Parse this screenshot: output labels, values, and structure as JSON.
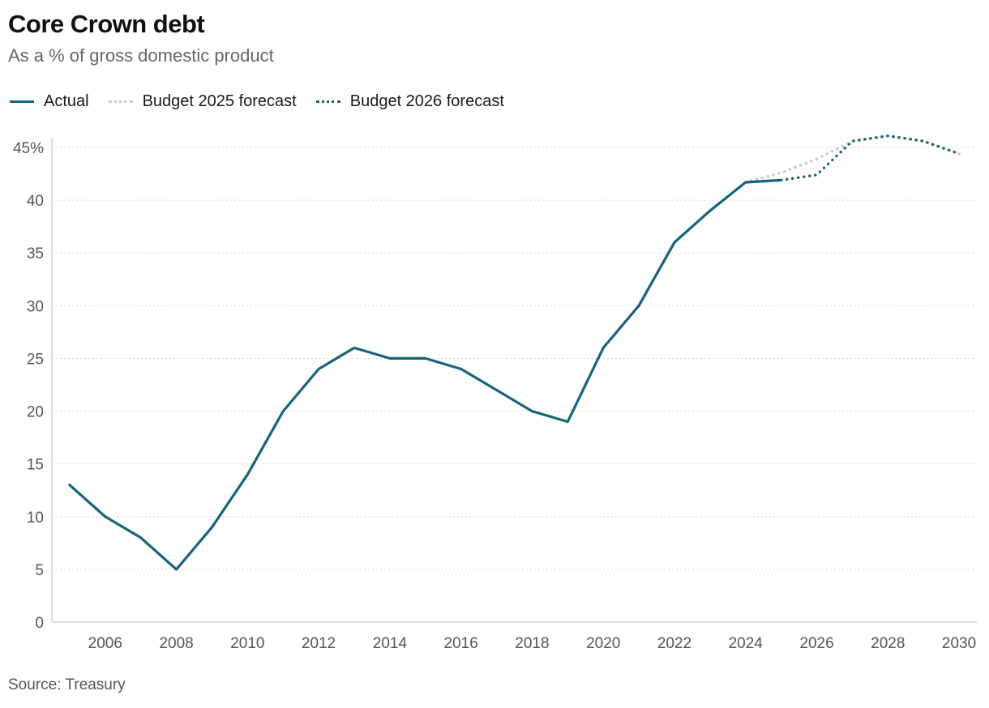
{
  "header": {
    "title": "Core Crown debt",
    "subtitle": "As a % of gross domestic product"
  },
  "legend": [
    {
      "label": "Actual",
      "style": "solid",
      "color": "#17647a"
    },
    {
      "label": "Budget 2025 forecast",
      "style": "dotted",
      "color": "#c8c8c8"
    },
    {
      "label": "Budget 2026 forecast",
      "style": "dotted",
      "color": "#17647a"
    }
  ],
  "source": "Source: Treasury",
  "chart_data": {
    "type": "line",
    "title": "Core Crown debt",
    "subtitle": "As a % of gross domestic product",
    "xlim": [
      2004.5,
      2030.5
    ],
    "ylim": [
      0,
      45
    ],
    "x_ticks": [
      2006,
      2008,
      2010,
      2012,
      2014,
      2016,
      2018,
      2020,
      2022,
      2024,
      2026,
      2028,
      2030
    ],
    "y_ticks": [
      0,
      5,
      10,
      15,
      20,
      25,
      30,
      35,
      40,
      45
    ],
    "y_tick_labels": [
      "0",
      "5",
      "10",
      "15",
      "20",
      "25",
      "30",
      "35",
      "40",
      "45%"
    ],
    "grid": "horizontal dotted",
    "legend_position": "top-left",
    "series": [
      {
        "name": "Budget 2025 forecast",
        "color": "#c8c8c8",
        "style": "dotted",
        "x": [
          2024,
          2025,
          2026,
          2027,
          2028,
          2029,
          2030
        ],
        "y": [
          41.7,
          42.6,
          43.9,
          45.6,
          46.1,
          45.6,
          44.4
        ]
      },
      {
        "name": "Budget 2026 forecast",
        "color": "#17647a",
        "style": "dotted",
        "x": [
          2025,
          2026,
          2027,
          2028,
          2029,
          2030
        ],
        "y": [
          41.9,
          42.4,
          45.6,
          46.1,
          45.6,
          44.4
        ]
      },
      {
        "name": "Actual",
        "color": "#17647a",
        "style": "solid",
        "x": [
          2005,
          2006,
          2007,
          2008,
          2009,
          2010,
          2011,
          2012,
          2013,
          2014,
          2015,
          2016,
          2017,
          2018,
          2019,
          2020,
          2021,
          2022,
          2023,
          2024,
          2025
        ],
        "y": [
          13,
          10,
          8,
          5,
          9,
          14,
          20,
          24,
          26,
          25,
          25,
          24,
          22,
          20,
          19,
          26,
          30,
          36,
          39,
          41.7,
          41.9
        ]
      }
    ]
  }
}
